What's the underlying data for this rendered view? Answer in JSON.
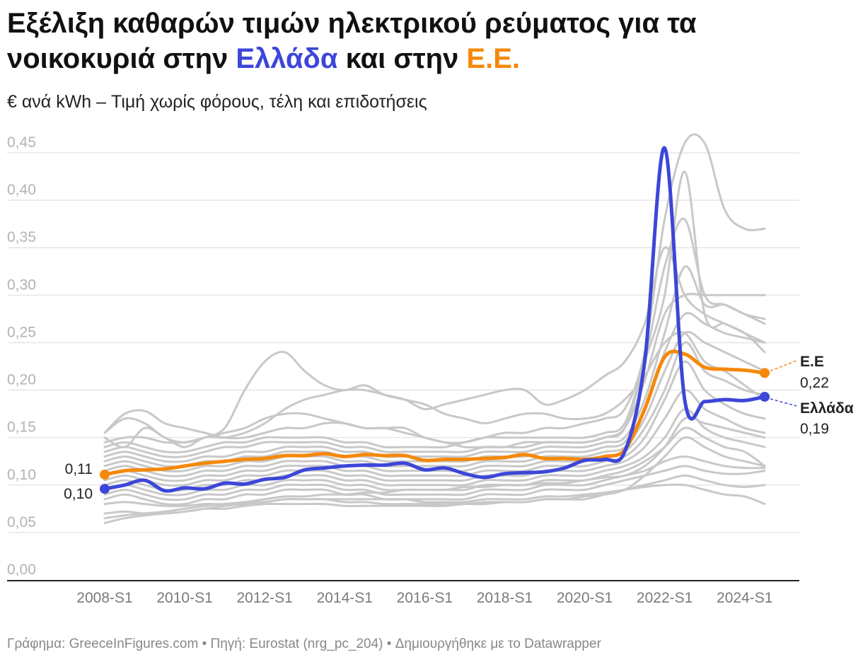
{
  "title": {
    "prefix": "Εξέλιξη καθαρών τιμών ηλεκτρικού ρεύματος για τα νοικοκυριά στην ",
    "greece": "Ελλάδα",
    "middle": " και στην ",
    "eu": "Ε.Ε."
  },
  "subtitle": "€ ανά kWh – Τιμή χωρίς φόρους, τέλη και επιδοτήσεις",
  "footer": "Γράφημα: GreeceInFigures.com • Πηγή: Eurostat (nrg_pc_204) • Δημιουργήθηκε με το Datawrapper",
  "colors": {
    "greece": "#3c46d8",
    "eu": "#f5890a",
    "others": "#c8c8c8",
    "grid": "#e6e6e6"
  },
  "chart_data": {
    "type": "line",
    "title": "Εξέλιξη καθαρών τιμών ηλεκτρικού ρεύματος για τα νοικοκυριά στην Ελλάδα και στην Ε.Ε.",
    "ylabel": "€ ανά kWh – Τιμή χωρίς φόρους, τέλη και επιδοτήσεις",
    "ylim": [
      0,
      0.45
    ],
    "yticks": [
      "0,00",
      "0,05",
      "0,10",
      "0,15",
      "0,20",
      "0,25",
      "0,30",
      "0,35",
      "0,40",
      "0,45"
    ],
    "xlim": [
      2008.0,
      2024.5
    ],
    "xtick_values": [
      2008,
      2010,
      2012,
      2014,
      2016,
      2018,
      2020,
      2022,
      2024
    ],
    "xtick_labels": [
      "2008-S1",
      "2010-S1",
      "2012-S1",
      "2014-S1",
      "2016-S1",
      "2018-S1",
      "2020-S1",
      "2022-S1",
      "2024-S1"
    ],
    "x": [
      2008.0,
      2008.5,
      2009.0,
      2009.5,
      2010.0,
      2010.5,
      2011.0,
      2011.5,
      2012.0,
      2012.5,
      2013.0,
      2013.5,
      2014.0,
      2014.5,
      2015.0,
      2015.5,
      2016.0,
      2016.5,
      2017.0,
      2017.5,
      2018.0,
      2018.5,
      2019.0,
      2019.5,
      2020.0,
      2020.5,
      2021.0,
      2021.5,
      2022.0,
      2022.5,
      2023.0,
      2023.5,
      2024.0,
      2024.5
    ],
    "series": [
      {
        "name": "Ελλάδα",
        "highlight": true,
        "end_label": "Ελλάδα",
        "end_value_label": "0,19",
        "start_value_label": "0,10",
        "values": [
          0.096,
          0.1,
          0.105,
          0.094,
          0.097,
          0.096,
          0.102,
          0.101,
          0.106,
          0.108,
          0.116,
          0.118,
          0.12,
          0.121,
          0.121,
          0.123,
          0.116,
          0.118,
          0.112,
          0.108,
          0.112,
          0.113,
          0.114,
          0.118,
          0.126,
          0.127,
          0.135,
          0.23,
          0.455,
          0.19,
          0.188,
          0.19,
          0.189,
          0.193
        ]
      },
      {
        "name": "Ε.Ε.",
        "highlight": true,
        "end_label": "Ε.Ε",
        "end_value_label": "0,22",
        "start_value_label": "0,11",
        "values": [
          0.111,
          0.115,
          0.116,
          0.117,
          0.12,
          0.123,
          0.125,
          0.127,
          0.128,
          0.131,
          0.131,
          0.133,
          0.13,
          0.132,
          0.131,
          0.131,
          0.126,
          0.127,
          0.127,
          0.128,
          0.129,
          0.132,
          0.128,
          0.128,
          0.127,
          0.13,
          0.137,
          0.18,
          0.235,
          0.238,
          0.224,
          0.222,
          0.221,
          0.218
        ]
      },
      {
        "name": "other-1",
        "values": [
          0.155,
          0.17,
          0.165,
          0.15,
          0.145,
          0.15,
          0.16,
          0.2,
          0.23,
          0.24,
          0.22,
          0.205,
          0.2,
          0.205,
          0.195,
          0.19,
          0.185,
          0.175,
          0.17,
          0.165,
          0.17,
          0.175,
          0.175,
          0.17,
          0.17,
          0.175,
          0.19,
          0.215,
          0.25,
          0.26,
          0.23,
          0.22,
          0.205,
          0.19
        ]
      },
      {
        "name": "other-2",
        "values": [
          0.15,
          0.14,
          0.16,
          0.15,
          0.14,
          0.15,
          0.15,
          0.155,
          0.165,
          0.18,
          0.19,
          0.195,
          0.2,
          0.2,
          0.195,
          0.19,
          0.18,
          0.185,
          0.19,
          0.195,
          0.2,
          0.2,
          0.185,
          0.19,
          0.2,
          0.215,
          0.23,
          0.27,
          0.35,
          0.3,
          0.28,
          0.27,
          0.26,
          0.25
        ]
      },
      {
        "name": "other-3",
        "values": [
          0.145,
          0.15,
          0.15,
          0.145,
          0.145,
          0.15,
          0.155,
          0.16,
          0.17,
          0.175,
          0.175,
          0.17,
          0.165,
          0.16,
          0.16,
          0.155,
          0.15,
          0.145,
          0.145,
          0.15,
          0.155,
          0.155,
          0.16,
          0.16,
          0.165,
          0.17,
          0.18,
          0.24,
          0.38,
          0.46,
          0.46,
          0.39,
          0.37,
          0.37
        ]
      },
      {
        "name": "other-4",
        "values": [
          0.14,
          0.145,
          0.14,
          0.135,
          0.135,
          0.14,
          0.145,
          0.145,
          0.15,
          0.15,
          0.15,
          0.15,
          0.145,
          0.145,
          0.14,
          0.14,
          0.14,
          0.14,
          0.145,
          0.15,
          0.15,
          0.15,
          0.15,
          0.15,
          0.15,
          0.155,
          0.165,
          0.23,
          0.3,
          0.43,
          0.28,
          0.27,
          0.26,
          0.24
        ]
      },
      {
        "name": "other-5",
        "values": [
          0.135,
          0.14,
          0.135,
          0.13,
          0.13,
          0.135,
          0.14,
          0.14,
          0.145,
          0.145,
          0.145,
          0.145,
          0.14,
          0.14,
          0.135,
          0.135,
          0.135,
          0.135,
          0.135,
          0.14,
          0.14,
          0.14,
          0.145,
          0.145,
          0.145,
          0.15,
          0.16,
          0.21,
          0.28,
          0.3,
          0.3,
          0.3,
          0.3,
          0.3
        ]
      },
      {
        "name": "other-6",
        "values": [
          0.13,
          0.135,
          0.13,
          0.125,
          0.125,
          0.13,
          0.13,
          0.135,
          0.135,
          0.14,
          0.14,
          0.14,
          0.135,
          0.135,
          0.13,
          0.13,
          0.13,
          0.13,
          0.13,
          0.135,
          0.135,
          0.135,
          0.14,
          0.14,
          0.14,
          0.145,
          0.15,
          0.19,
          0.26,
          0.33,
          0.29,
          0.29,
          0.28,
          0.275
        ]
      },
      {
        "name": "other-7",
        "values": [
          0.125,
          0.13,
          0.125,
          0.12,
          0.12,
          0.125,
          0.125,
          0.13,
          0.13,
          0.135,
          0.135,
          0.135,
          0.13,
          0.13,
          0.125,
          0.125,
          0.125,
          0.125,
          0.125,
          0.13,
          0.13,
          0.13,
          0.135,
          0.135,
          0.135,
          0.14,
          0.145,
          0.18,
          0.24,
          0.28,
          0.27,
          0.26,
          0.255,
          0.25
        ]
      },
      {
        "name": "other-8",
        "values": [
          0.12,
          0.125,
          0.12,
          0.115,
          0.115,
          0.12,
          0.12,
          0.125,
          0.125,
          0.13,
          0.13,
          0.13,
          0.125,
          0.125,
          0.12,
          0.12,
          0.12,
          0.12,
          0.12,
          0.125,
          0.125,
          0.125,
          0.13,
          0.13,
          0.13,
          0.135,
          0.14,
          0.17,
          0.22,
          0.26,
          0.25,
          0.24,
          0.23,
          0.22
        ]
      },
      {
        "name": "other-9",
        "values": [
          0.115,
          0.12,
          0.115,
          0.11,
          0.11,
          0.115,
          0.115,
          0.12,
          0.12,
          0.125,
          0.125,
          0.125,
          0.12,
          0.12,
          0.115,
          0.115,
          0.115,
          0.115,
          0.115,
          0.12,
          0.12,
          0.12,
          0.125,
          0.125,
          0.125,
          0.13,
          0.135,
          0.16,
          0.2,
          0.25,
          0.22,
          0.21,
          0.2,
          0.195
        ]
      },
      {
        "name": "other-10",
        "values": [
          0.11,
          0.115,
          0.11,
          0.105,
          0.105,
          0.11,
          0.11,
          0.115,
          0.115,
          0.12,
          0.12,
          0.12,
          0.115,
          0.115,
          0.11,
          0.11,
          0.11,
          0.11,
          0.11,
          0.115,
          0.115,
          0.115,
          0.12,
          0.12,
          0.12,
          0.125,
          0.13,
          0.15,
          0.19,
          0.23,
          0.2,
          0.185,
          0.175,
          0.17
        ]
      },
      {
        "name": "other-11",
        "values": [
          0.105,
          0.11,
          0.105,
          0.1,
          0.1,
          0.105,
          0.105,
          0.11,
          0.11,
          0.115,
          0.115,
          0.115,
          0.11,
          0.11,
          0.105,
          0.105,
          0.105,
          0.105,
          0.105,
          0.11,
          0.11,
          0.11,
          0.115,
          0.115,
          0.115,
          0.12,
          0.125,
          0.14,
          0.17,
          0.2,
          0.18,
          0.17,
          0.16,
          0.155
        ]
      },
      {
        "name": "other-12",
        "values": [
          0.1,
          0.105,
          0.1,
          0.095,
          0.095,
          0.1,
          0.1,
          0.105,
          0.105,
          0.11,
          0.11,
          0.11,
          0.105,
          0.105,
          0.1,
          0.1,
          0.1,
          0.1,
          0.1,
          0.105,
          0.105,
          0.105,
          0.11,
          0.11,
          0.11,
          0.115,
          0.12,
          0.13,
          0.15,
          0.18,
          0.16,
          0.15,
          0.145,
          0.14
        ]
      },
      {
        "name": "other-13",
        "values": [
          0.095,
          0.1,
          0.095,
          0.09,
          0.09,
          0.095,
          0.095,
          0.1,
          0.1,
          0.105,
          0.105,
          0.105,
          0.1,
          0.1,
          0.095,
          0.095,
          0.095,
          0.095,
          0.095,
          0.1,
          0.1,
          0.1,
          0.105,
          0.105,
          0.105,
          0.11,
          0.115,
          0.125,
          0.14,
          0.16,
          0.15,
          0.14,
          0.135,
          0.12
        ]
      },
      {
        "name": "other-14",
        "values": [
          0.09,
          0.095,
          0.09,
          0.085,
          0.085,
          0.09,
          0.09,
          0.095,
          0.095,
          0.1,
          0.1,
          0.1,
          0.095,
          0.095,
          0.09,
          0.09,
          0.09,
          0.09,
          0.09,
          0.095,
          0.095,
          0.095,
          0.1,
          0.1,
          0.1,
          0.105,
          0.11,
          0.115,
          0.125,
          0.13,
          0.125,
          0.12,
          0.118,
          0.118
        ]
      },
      {
        "name": "other-15",
        "values": [
          0.085,
          0.09,
          0.085,
          0.08,
          0.08,
          0.085,
          0.085,
          0.09,
          0.09,
          0.095,
          0.095,
          0.095,
          0.09,
          0.09,
          0.085,
          0.085,
          0.085,
          0.085,
          0.085,
          0.09,
          0.09,
          0.09,
          0.095,
          0.095,
          0.095,
          0.1,
          0.105,
          0.11,
          0.115,
          0.12,
          0.115,
          0.112,
          0.112,
          0.115
        ]
      },
      {
        "name": "other-16",
        "values": [
          0.08,
          0.082,
          0.08,
          0.078,
          0.078,
          0.08,
          0.08,
          0.082,
          0.082,
          0.085,
          0.085,
          0.085,
          0.082,
          0.082,
          0.08,
          0.08,
          0.08,
          0.08,
          0.08,
          0.082,
          0.082,
          0.082,
          0.085,
          0.085,
          0.085,
          0.09,
          0.095,
          0.1,
          0.105,
          0.11,
          0.105,
          0.1,
          0.098,
          0.1
        ]
      },
      {
        "name": "other-17",
        "values": [
          0.07,
          0.072,
          0.07,
          0.07,
          0.072,
          0.075,
          0.078,
          0.08,
          0.082,
          0.085,
          0.085,
          0.085,
          0.085,
          0.085,
          0.085,
          0.085,
          0.082,
          0.082,
          0.082,
          0.085,
          0.085,
          0.085,
          0.088,
          0.088,
          0.09,
          0.092,
          0.095,
          0.098,
          0.1,
          0.1,
          0.095,
          0.09,
          0.088,
          0.08
        ]
      },
      {
        "name": "other-18",
        "values": [
          0.06,
          0.065,
          0.068,
          0.07,
          0.072,
          0.075,
          0.075,
          0.078,
          0.08,
          0.08,
          0.08,
          0.08,
          0.078,
          0.078,
          0.078,
          0.078,
          0.078,
          0.078,
          0.08,
          0.08,
          0.082,
          0.082,
          0.085,
          0.085,
          0.088,
          0.09,
          0.095,
          0.11,
          0.13,
          0.15,
          0.14,
          0.13,
          0.125,
          0.12
        ]
      },
      {
        "name": "other-19",
        "values": [
          0.155,
          0.175,
          0.178,
          0.165,
          0.16,
          0.155,
          0.15,
          0.15,
          0.155,
          0.16,
          0.16,
          0.165,
          0.165,
          0.16,
          0.16,
          0.16,
          0.15,
          0.145,
          0.14,
          0.14,
          0.14,
          0.145,
          0.145,
          0.145,
          0.145,
          0.15,
          0.16,
          0.23,
          0.33,
          0.38,
          0.3,
          0.29,
          0.28,
          0.27
        ]
      },
      {
        "name": "other-20",
        "values": [
          0.065,
          0.068,
          0.07,
          0.072,
          0.075,
          0.078,
          0.08,
          0.082,
          0.085,
          0.088,
          0.088,
          0.09,
          0.09,
          0.092,
          0.092,
          0.095,
          0.095,
          0.095,
          0.098,
          0.098,
          0.1,
          0.1,
          0.102,
          0.102,
          0.105,
          0.108,
          0.11,
          0.12,
          0.14,
          0.17,
          0.165,
          0.16,
          0.155,
          0.15
        ]
      }
    ]
  }
}
